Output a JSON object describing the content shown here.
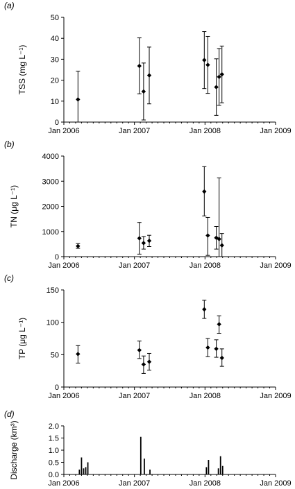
{
  "x_axis": {
    "tick_labels": [
      "Jan 2006",
      "Jan 2007",
      "Jan 2008",
      "Jan 2009"
    ],
    "range_years": [
      2006.0,
      2009.0
    ]
  },
  "chart_data": [
    {
      "type": "scatter",
      "panel_label": "(a)",
      "ylabel": "TSS (mg L⁻¹)",
      "ylim": [
        0,
        50
      ],
      "yticks": [
        "0",
        "10",
        "20",
        "30",
        "40",
        "50"
      ],
      "ytick_values": [
        0,
        10,
        20,
        30,
        40,
        50
      ],
      "points": [
        {
          "date": "2006-03",
          "x": 2006.2,
          "y": 10.8,
          "low": 0,
          "high": 24.3
        },
        {
          "date": "2007-01",
          "x": 2007.07,
          "y": 26.8,
          "low": 13.5,
          "high": 40.2
        },
        {
          "date": "2007-02",
          "x": 2007.13,
          "y": 14.6,
          "low": 1.0,
          "high": 28.2
        },
        {
          "date": "2007-03",
          "x": 2007.21,
          "y": 22.3,
          "low": 8.7,
          "high": 35.8
        },
        {
          "date": "2007-12",
          "x": 2007.99,
          "y": 29.6,
          "low": 16.0,
          "high": 43.2
        },
        {
          "date": "2008-01",
          "x": 2008.04,
          "y": 27.3,
          "low": 13.7,
          "high": 40.9
        },
        {
          "date": "2008-02",
          "x": 2008.16,
          "y": 16.7,
          "low": 3.2,
          "high": 30.2
        },
        {
          "date": "2008-02",
          "x": 2008.2,
          "y": 21.6,
          "low": 8.0,
          "high": 35.1
        },
        {
          "date": "2008-03",
          "x": 2008.24,
          "y": 22.8,
          "low": 9.2,
          "high": 36.3
        }
      ]
    },
    {
      "type": "scatter",
      "panel_label": "(b)",
      "ylabel": "TN (μg L⁻¹)",
      "ylim": [
        0,
        4000
      ],
      "yticks": [
        "0",
        "1000",
        "2000",
        "3000",
        "4000"
      ],
      "ytick_values": [
        0,
        1000,
        2000,
        3000,
        4000
      ],
      "points": [
        {
          "date": "2006-03",
          "x": 2006.2,
          "y": 420,
          "low": 330,
          "high": 520
        },
        {
          "date": "2007-01",
          "x": 2007.07,
          "y": 730,
          "low": 100,
          "high": 1360
        },
        {
          "date": "2007-02",
          "x": 2007.13,
          "y": 540,
          "low": 300,
          "high": 800
        },
        {
          "date": "2007-03",
          "x": 2007.21,
          "y": 630,
          "low": 400,
          "high": 850
        },
        {
          "date": "2007-12",
          "x": 2007.99,
          "y": 2590,
          "low": 1620,
          "high": 3580
        },
        {
          "date": "2008-01",
          "x": 2008.04,
          "y": 840,
          "low": 50,
          "high": 1560
        },
        {
          "date": "2008-02",
          "x": 2008.16,
          "y": 750,
          "low": 300,
          "high": 1200
        },
        {
          "date": "2008-02",
          "x": 2008.2,
          "y": 700,
          "low": 0,
          "high": 3130
        },
        {
          "date": "2008-03",
          "x": 2008.24,
          "y": 450,
          "low": 0,
          "high": 920
        }
      ]
    },
    {
      "type": "scatter",
      "panel_label": "(c)",
      "ylabel": "TP (μg L⁻¹)",
      "ylim": [
        0,
        150
      ],
      "yticks": [
        "0",
        "50",
        "100",
        "150"
      ],
      "ytick_values": [
        0,
        50,
        100,
        150
      ],
      "points": [
        {
          "date": "2006-03",
          "x": 2006.2,
          "y": 51,
          "low": 37,
          "high": 64
        },
        {
          "date": "2007-01",
          "x": 2007.07,
          "y": 57,
          "low": 44,
          "high": 71
        },
        {
          "date": "2007-02",
          "x": 2007.13,
          "y": 35,
          "low": 21,
          "high": 48
        },
        {
          "date": "2007-03",
          "x": 2007.21,
          "y": 39,
          "low": 26,
          "high": 52
        },
        {
          "date": "2007-12",
          "x": 2007.99,
          "y": 120,
          "low": 106,
          "high": 134
        },
        {
          "date": "2008-01",
          "x": 2008.04,
          "y": 61,
          "low": 47,
          "high": 75
        },
        {
          "date": "2008-02",
          "x": 2008.16,
          "y": 59,
          "low": 46,
          "high": 73
        },
        {
          "date": "2008-02",
          "x": 2008.2,
          "y": 97,
          "low": 83,
          "high": 110
        },
        {
          "date": "2008-03",
          "x": 2008.24,
          "y": 45,
          "low": 32,
          "high": 59
        }
      ]
    },
    {
      "type": "bar",
      "panel_label": "(d)",
      "ylabel": "Discharge (km³)",
      "ylim": [
        0,
        2.0
      ],
      "yticks": [
        "0.0",
        "0.5",
        "1.0",
        "1.5",
        "2.0"
      ],
      "ytick_values": [
        0,
        0.5,
        1.0,
        1.5,
        2.0
      ],
      "bars": [
        {
          "x": 2006.22,
          "value": 0.2
        },
        {
          "x": 2006.25,
          "value": 0.7
        },
        {
          "x": 2006.28,
          "value": 0.25
        },
        {
          "x": 2006.31,
          "value": 0.3
        },
        {
          "x": 2006.34,
          "value": 0.5
        },
        {
          "x": 2007.09,
          "value": 1.55
        },
        {
          "x": 2007.14,
          "value": 0.65
        },
        {
          "x": 2007.22,
          "value": 0.2
        },
        {
          "x": 2008.02,
          "value": 0.3
        },
        {
          "x": 2008.05,
          "value": 0.6
        },
        {
          "x": 2008.19,
          "value": 0.25
        },
        {
          "x": 2008.22,
          "value": 0.75
        },
        {
          "x": 2008.25,
          "value": 0.35
        }
      ]
    }
  ]
}
